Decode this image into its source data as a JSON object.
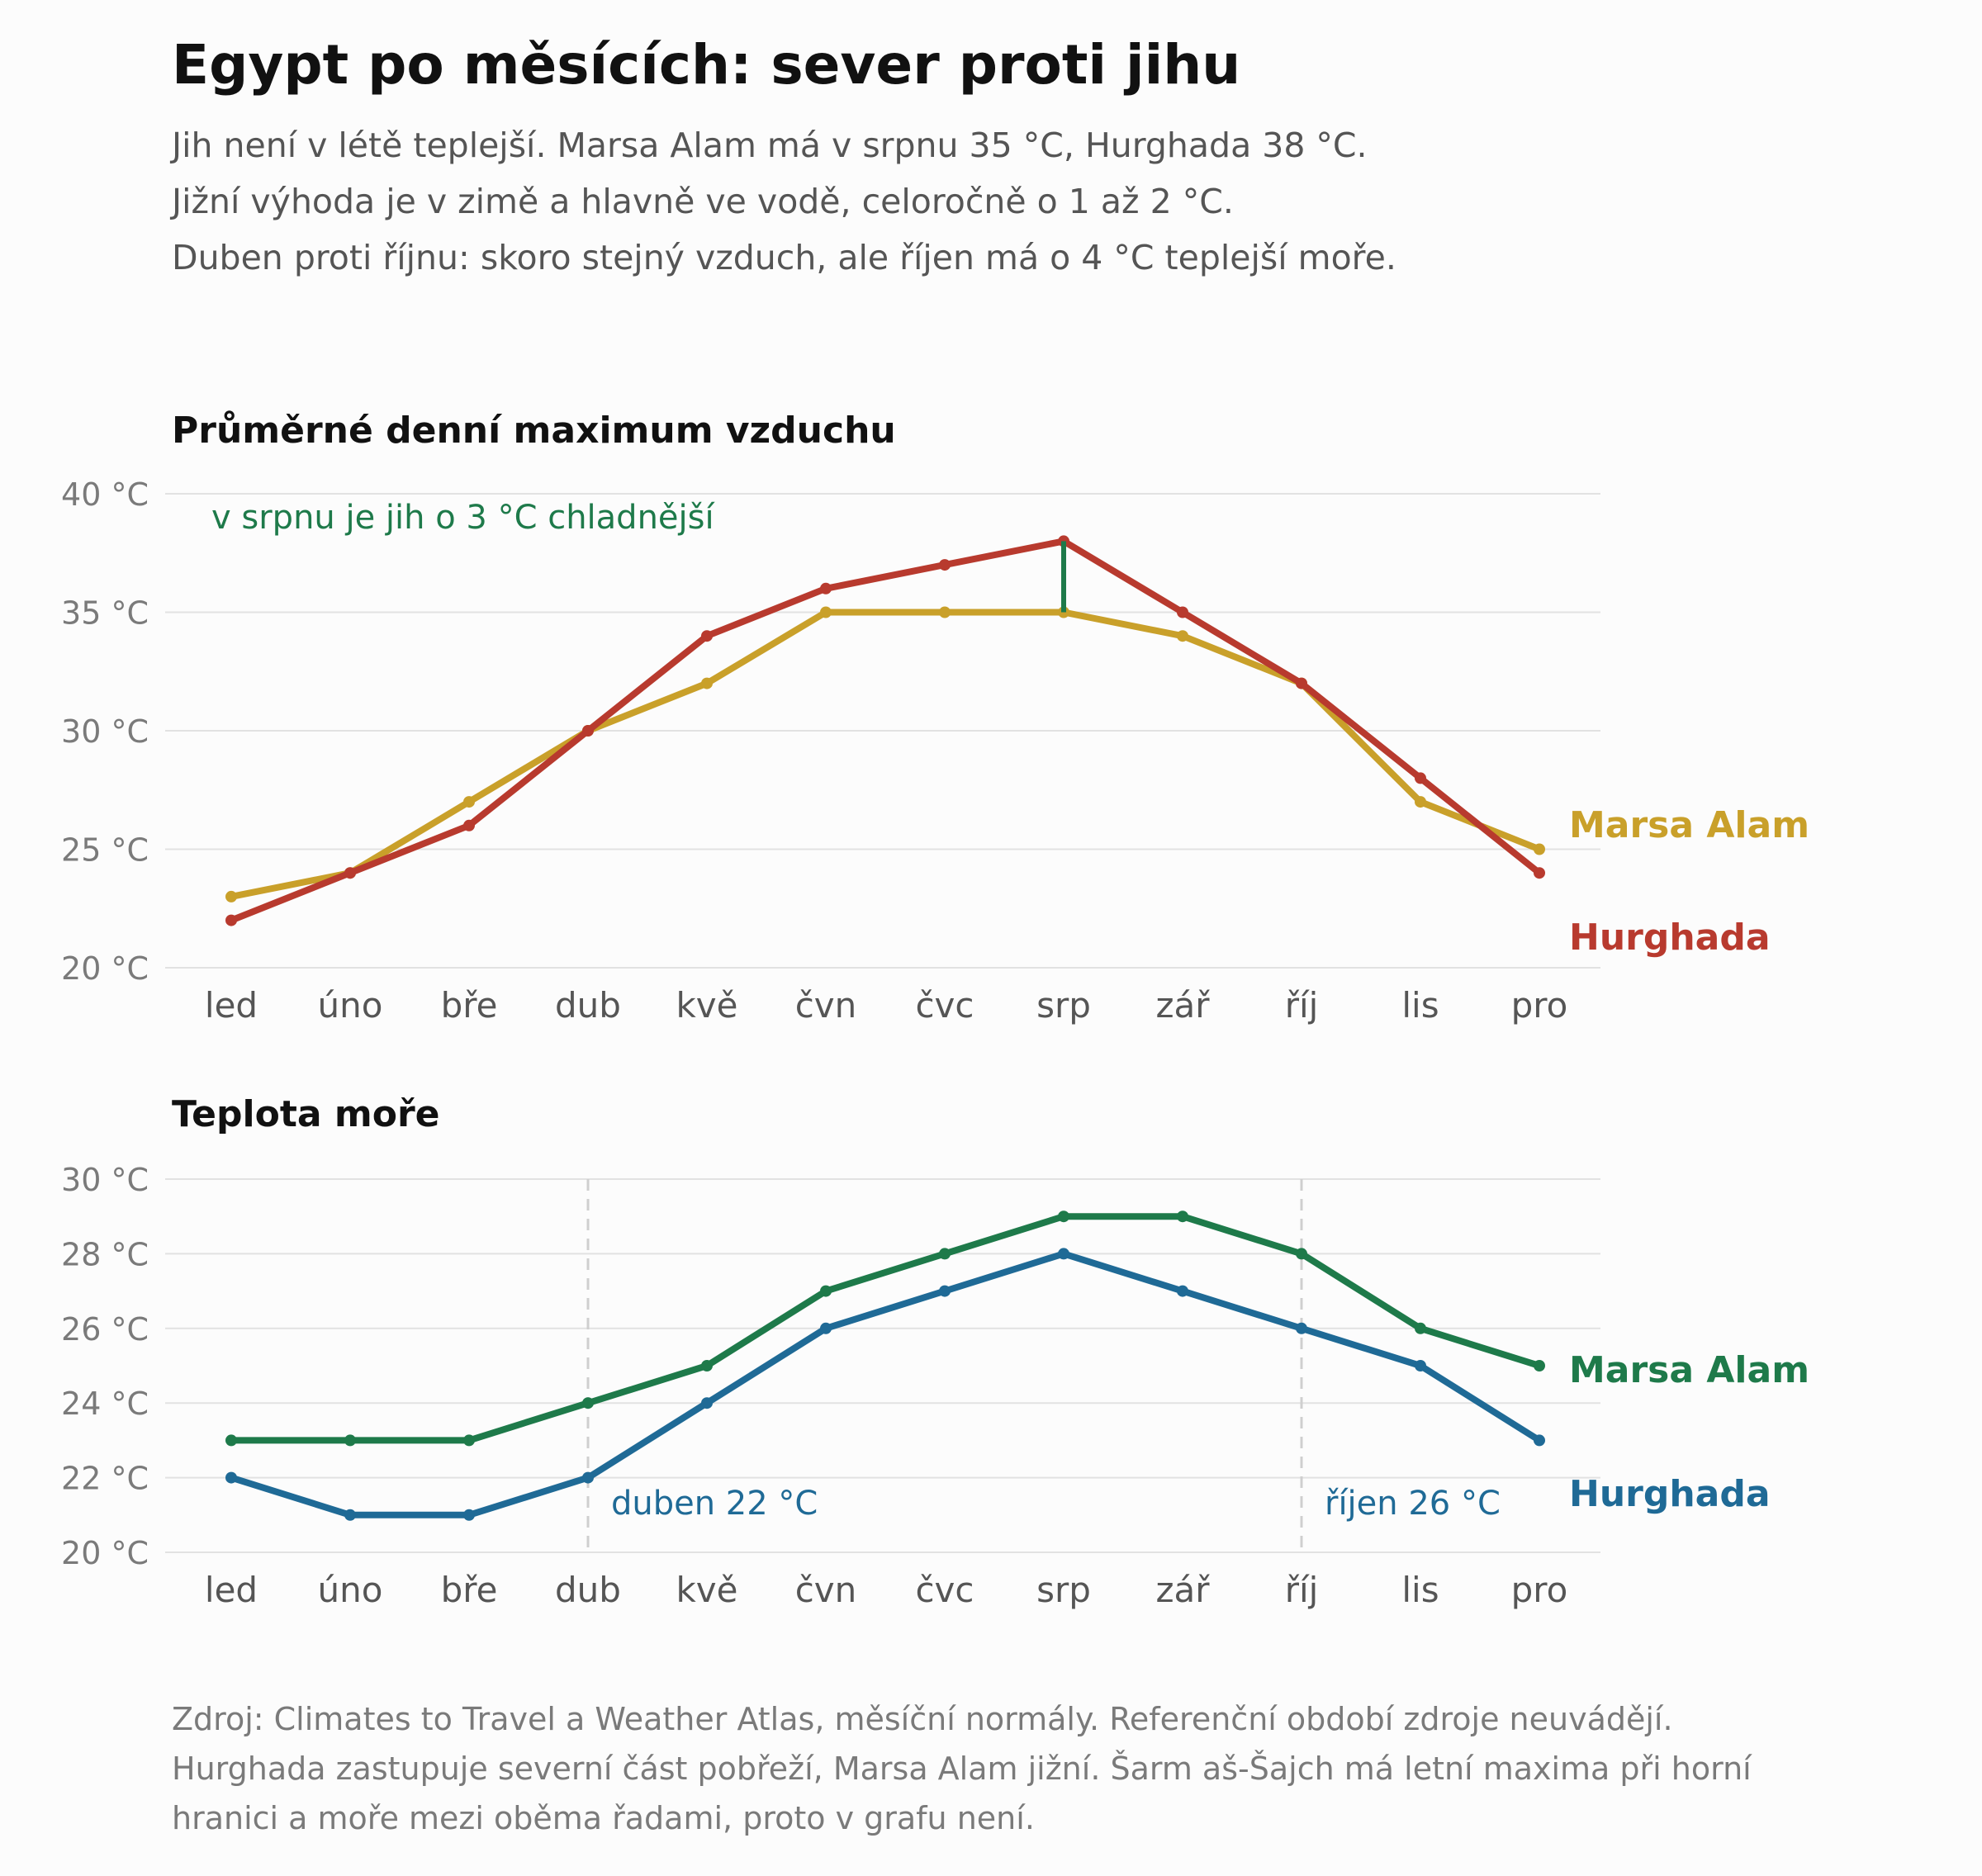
{
  "title": "Egypt po měsících: sever proti jihu",
  "subtitle_lines": [
    "Jih není v létě teplejší. Marsa Alam má v srpnu 35 °C, Hurghada 38 °C.",
    "Jižní výhoda je v zimě a hlavně ve vodě, celoročně o 1 až 2 °C.",
    "Duben proti říjnu: skoro stejný vzduch, ale říjen má o 4 °C teplejší moře."
  ],
  "source_lines": [
    "Zdroj: Climates to Travel a Weather Atlas, měsíční normály. Referenční období zdroje neuvádějí.",
    "Hurghada zastupuje severní část pobřeží, Marsa Alam jižní. Šarm aš-Šajch má letní maxima při horní",
    "hranici a moře mezi oběma řadami, proto v grafu není."
  ],
  "chart_data": [
    {
      "type": "line",
      "title": "Průměrné denní maximum vzduchu",
      "categories": [
        "led",
        "úno",
        "bře",
        "dub",
        "kvě",
        "čvn",
        "čvc",
        "srp",
        "zář",
        "říj",
        "lis",
        "pro"
      ],
      "ylim": [
        20,
        40
      ],
      "yticks": [
        20,
        25,
        30,
        35,
        40
      ],
      "ytick_labels": [
        "20 °C",
        "25 °C",
        "30 °C",
        "35 °C",
        "40 °C"
      ],
      "grid": true,
      "series": [
        {
          "name": "Hurghada",
          "color": "#b83a2e",
          "values": [
            22,
            24,
            26,
            30,
            34,
            36,
            37,
            38,
            35,
            32,
            28,
            24
          ]
        },
        {
          "name": "Marsa Alam",
          "color": "#c9a02a",
          "values": [
            23,
            24,
            27,
            30,
            32,
            35,
            35,
            35,
            34,
            32,
            27,
            25
          ]
        }
      ],
      "annotations": [
        {
          "text": "v srpnu je jih o 3 °C chladnější",
          "color": "#1e7a4a",
          "gap_at": "srp",
          "from": 35,
          "to": 38
        }
      ]
    },
    {
      "type": "line",
      "title": "Teplota moře",
      "categories": [
        "led",
        "úno",
        "bře",
        "dub",
        "kvě",
        "čvn",
        "čvc",
        "srp",
        "zář",
        "říj",
        "lis",
        "pro"
      ],
      "ylim": [
        20,
        30
      ],
      "yticks": [
        20,
        22,
        24,
        26,
        28,
        30
      ],
      "ytick_labels": [
        "20 °C",
        "22 °C",
        "24 °C",
        "26 °C",
        "28 °C",
        "30 °C"
      ],
      "grid": true,
      "series": [
        {
          "name": "Marsa Alam",
          "color": "#1e7a4a",
          "values": [
            23,
            23,
            23,
            24,
            25,
            27,
            28,
            29,
            29,
            28,
            26,
            25
          ]
        },
        {
          "name": "Hurghada",
          "color": "#1f6a96",
          "values": [
            22,
            21,
            21,
            22,
            24,
            26,
            27,
            28,
            27,
            26,
            25,
            23
          ]
        }
      ],
      "annotations": [
        {
          "text": "duben 22 °C",
          "color": "#1f6a96",
          "at": "dub"
        },
        {
          "text": "říjen 26 °C",
          "color": "#1f6a96",
          "at": "říj"
        }
      ]
    }
  ]
}
